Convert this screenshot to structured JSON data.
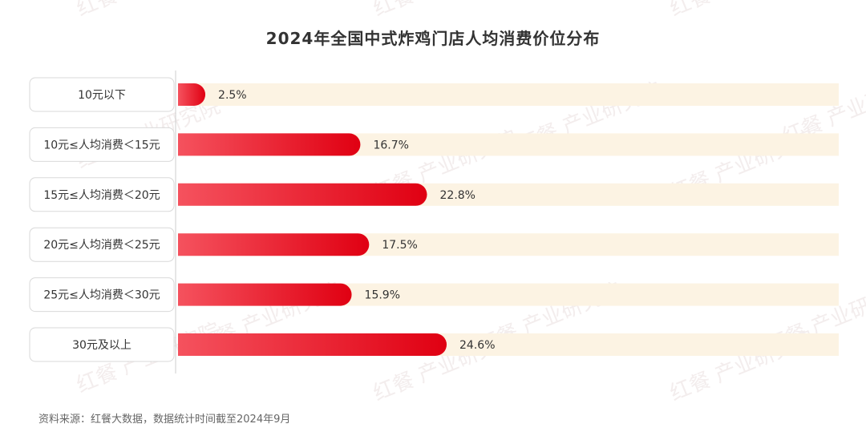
{
  "chart_data": {
    "type": "bar",
    "orientation": "horizontal",
    "title": "2024年全国中式炸鸡门店人均消费价位分布",
    "categories": [
      "10元以下",
      "10元≤人均消费＜15元",
      "15元≤人均消费＜20元",
      "20元≤人均消费＜25元",
      "25元≤人均消费＜30元",
      "30元及以上"
    ],
    "values": [
      2.5,
      16.7,
      22.8,
      17.5,
      15.9,
      24.6
    ],
    "value_labels": [
      "2.5%",
      "16.7%",
      "22.8%",
      "17.5%",
      "15.9%",
      "24.6%"
    ],
    "unit": "%",
    "xlim": [
      0,
      63
    ],
    "grid": false,
    "legend": "none",
    "colors": {
      "bar_start": "#f5525e",
      "bar_end": "#e00012",
      "track": "#fcf3e3",
      "label_border": "#d9d9d9",
      "text": "#333333"
    }
  },
  "source": "资料来源：红餐大数据，数据统计时间截至2024年9月",
  "watermark": "红餐 产业研究院"
}
